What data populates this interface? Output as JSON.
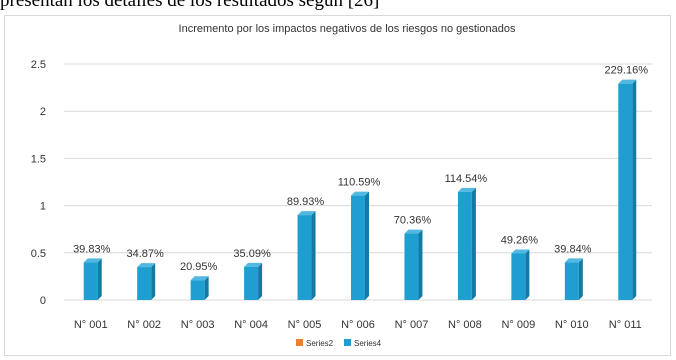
{
  "page": {
    "top_text": "presentan los detalles de los resultados según [26]"
  },
  "chart_data": {
    "type": "bar",
    "title": "Incremento por los impactos negativos de los riesgos no gestionados",
    "xlabel": "",
    "ylabel": "",
    "categories": [
      "N° 001",
      "N° 002",
      "N° 003",
      "N° 004",
      "N° 005",
      "N° 006",
      "N° 007",
      "N° 008",
      "N° 009",
      "N° 010",
      "N° 011"
    ],
    "series": [
      {
        "name": "Series2",
        "color": "#ED7D31",
        "values": [
          0,
          0,
          0,
          0,
          0,
          0,
          0,
          0,
          0,
          0,
          0
        ]
      },
      {
        "name": "Series4",
        "color": "#1F9FD1",
        "values": [
          0.3983,
          0.3487,
          0.2095,
          0.3509,
          0.8993,
          1.1059,
          0.7036,
          1.1454,
          0.4926,
          0.3984,
          2.2916
        ]
      }
    ],
    "data_labels": [
      "39.83%",
      "34.87%",
      "20.95%",
      "35.09%",
      "89.93%",
      "110.59%",
      "70.36%",
      "114.54%",
      "49.26%",
      "39.84%",
      "229.16%"
    ],
    "y_ticks": [
      "0",
      "0.5",
      "1",
      "1.5",
      "2",
      "2.5"
    ],
    "ylim": [
      0,
      2.5
    ],
    "grid": true,
    "legend_position": "bottom"
  }
}
